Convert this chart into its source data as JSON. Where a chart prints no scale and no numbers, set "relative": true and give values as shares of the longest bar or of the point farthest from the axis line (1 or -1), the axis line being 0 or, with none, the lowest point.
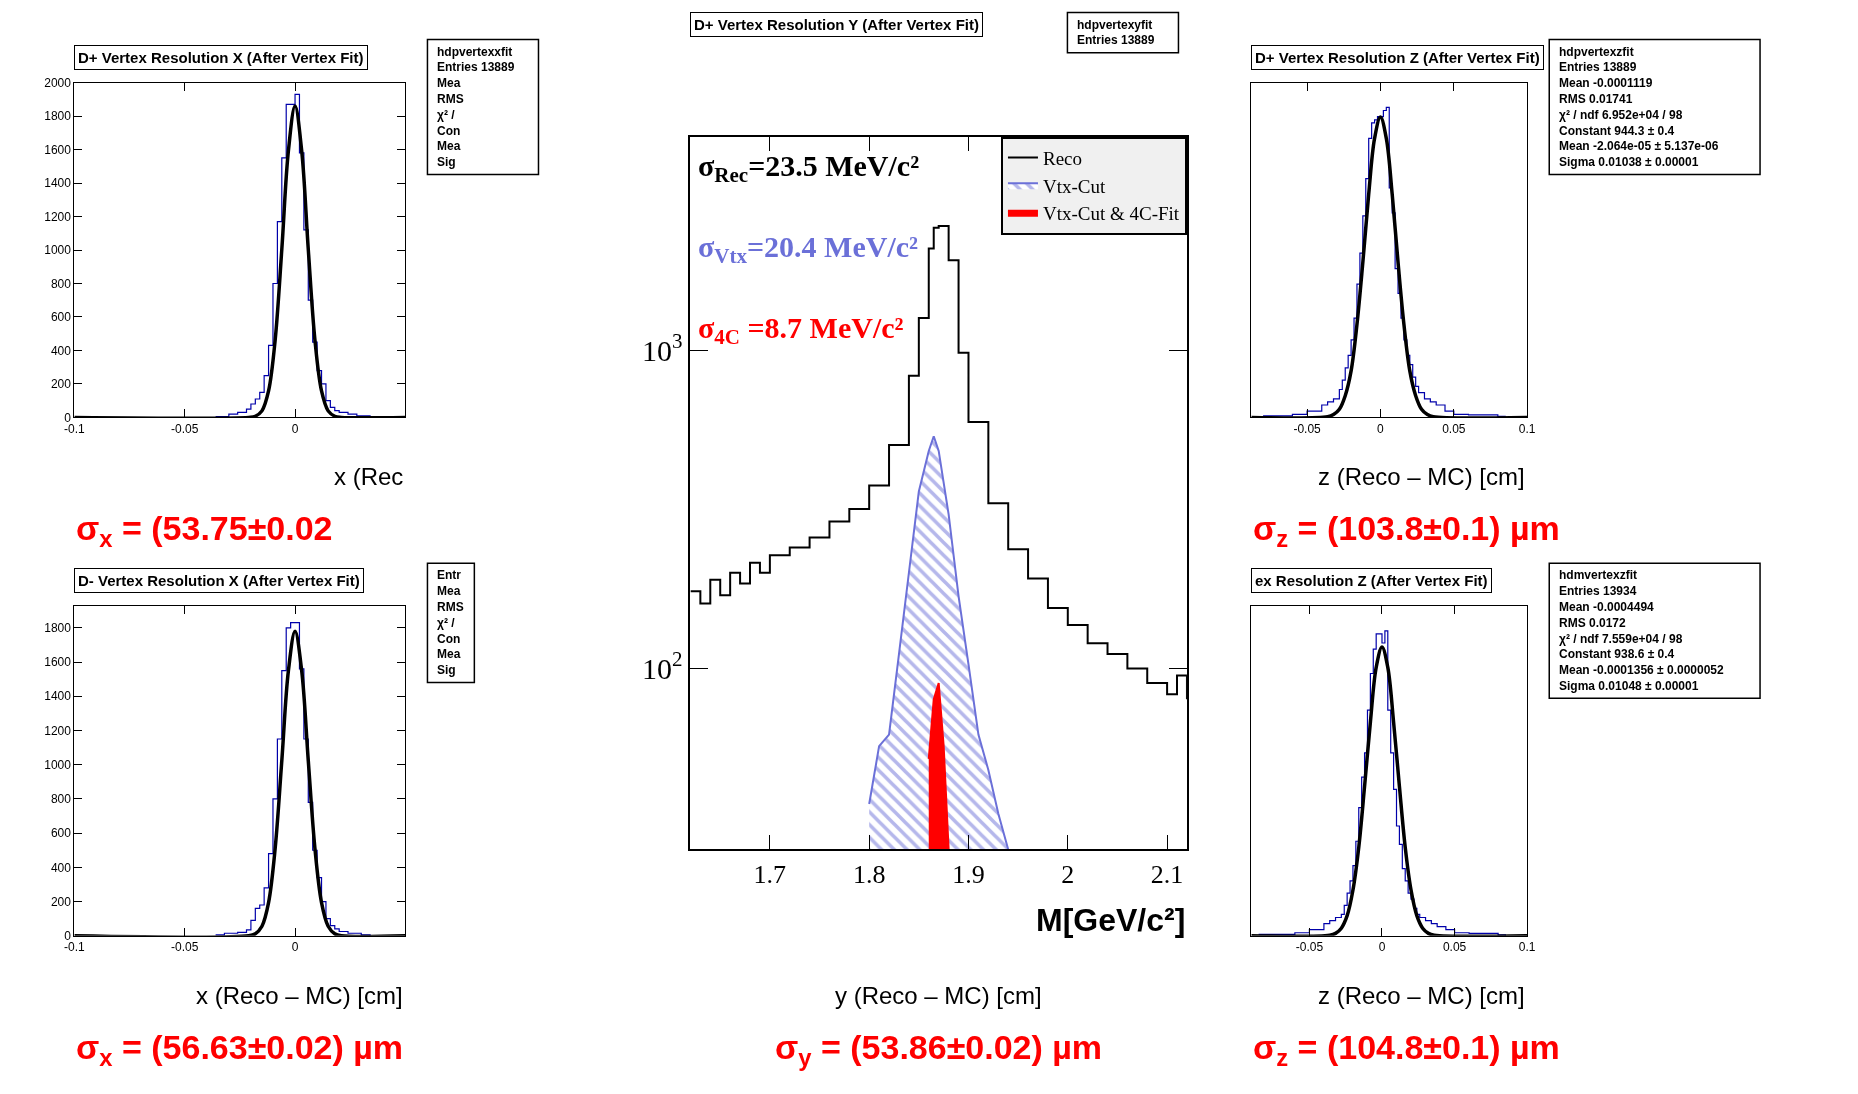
{
  "chart_data": [
    {
      "type": "line",
      "title": "D+ Vertex Resolution X (After Vertex Fit)",
      "xlabel": "x (Rec",
      "subtitle": "σ$_{x}$ = (53.75±0.02",
      "annotations": [
        "hdpvertexxfit",
        "Entries 13889",
        "Mea",
        "RMS",
        "χ² /",
        "Con",
        "Mea",
        "Sig"
      ],
      "xlim": [
        -0.1,
        0.05
      ],
      "xticks": [
        -0.1,
        -0.05,
        0
      ],
      "ylim": [
        0,
        2000
      ],
      "yticks": [
        0,
        200,
        400,
        600,
        800,
        1000,
        1200,
        1400,
        1600,
        1800,
        2000
      ],
      "series": [
        {
          "type": "step",
          "color": "#0000aa",
          "x": [
            -0.036,
            -0.03,
            -0.026,
            -0.022,
            -0.02,
            -0.018,
            -0.016,
            -0.014,
            -0.012,
            -0.01,
            -0.008,
            -0.006,
            -0.004,
            -0.002,
            0,
            0.002,
            0.004,
            0.006,
            0.008,
            0.01,
            0.012,
            0.014,
            0.016,
            0.018,
            0.02,
            0.024,
            0.028,
            0.034
          ],
          "values": [
            5,
            20,
            30,
            50,
            80,
            110,
            150,
            250,
            430,
            800,
            1170,
            1550,
            1870,
            1870,
            1930,
            1580,
            1120,
            700,
            450,
            280,
            200,
            100,
            60,
            40,
            30,
            20,
            10,
            0
          ]
        },
        {
          "type": "line",
          "color": "#000000",
          "x": [
            -0.1,
            -0.021,
            -0.018,
            -0.015,
            -0.012,
            -0.009,
            -0.006,
            -0.003,
            0,
            0.003,
            0.006,
            0.009,
            0.012,
            0.015,
            0.018,
            0.021,
            0.05
          ],
          "values": [
            0,
            0,
            7,
            39,
            158,
            464,
            1003,
            1594,
            1860,
            1594,
            1003,
            464,
            158,
            39,
            7,
            0,
            0
          ]
        }
      ]
    },
    {
      "type": "other",
      "title": "D+ Vertex Resolution Y (After Vertex Fit)",
      "annotations": [
        "hdpvertexyfit",
        "Entries 13889"
      ]
    },
    {
      "type": "line",
      "title": "D+ Vertex Resolution Z (After Vertex Fit)",
      "xlabel": "z (Reco – MC) [cm]",
      "subtitle": "σ$_{z}$ = (103.8±0.1) µm",
      "relative": true,
      "annotations": [
        "hdpvertexzfit",
        "Entries 13889",
        "Mean -0.0001119",
        "RMS 0.01741",
        "χ² / ndf 6.952e+04 / 98",
        "Constant 944.3 ± 0.4",
        "Mean -2.064e-05 ± 5.137e-06",
        "Sigma 0.01038 ± 0.00001"
      ],
      "xlim": [
        -0.088,
        0.1
      ],
      "xticks": [
        -0.05,
        0,
        0.05,
        0.1
      ],
      "series": [
        {
          "type": "step",
          "color": "#0000aa",
          "x": [
            -0.08,
            -0.06,
            -0.05,
            -0.04,
            -0.036,
            -0.032,
            -0.028,
            -0.026,
            -0.024,
            -0.022,
            -0.02,
            -0.018,
            -0.016,
            -0.014,
            -0.012,
            -0.01,
            -0.008,
            -0.006,
            -0.004,
            -0.002,
            0,
            0.002,
            0.004,
            0.006,
            0.008,
            0.01,
            0.012,
            0.014,
            0.016,
            0.018,
            0.02,
            0.022,
            0.024,
            0.026,
            0.03,
            0.034,
            0.038,
            0.044,
            0.05,
            0.06,
            0.08,
            0.085
          ],
          "values": [
            0.005,
            0.01,
            0.02,
            0.04,
            0.05,
            0.06,
            0.09,
            0.12,
            0.16,
            0.2,
            0.25,
            0.32,
            0.43,
            0.53,
            0.65,
            0.77,
            0.9,
            0.95,
            0.96,
            0.97,
            0.97,
            0.99,
            1.0,
            0.74,
            0.66,
            0.48,
            0.4,
            0.32,
            0.25,
            0.2,
            0.17,
            0.13,
            0.1,
            0.08,
            0.06,
            0.05,
            0.04,
            0.02,
            0.01,
            0.008,
            0.003,
            0
          ]
        },
        {
          "type": "line",
          "color": "#000000",
          "x": [
            -0.088,
            -0.036,
            -0.032,
            -0.028,
            -0.024,
            -0.02,
            -0.016,
            -0.012,
            -0.008,
            -0.004,
            0,
            0.004,
            0.008,
            0.012,
            0.016,
            0.02,
            0.024,
            0.028,
            0.032,
            0.036,
            0.1
          ],
          "values": [
            0,
            0.002,
            0.009,
            0.026,
            0.07,
            0.15,
            0.3,
            0.5,
            0.72,
            0.9,
            0.969,
            0.9,
            0.72,
            0.5,
            0.3,
            0.15,
            0.07,
            0.026,
            0.009,
            0.002,
            0
          ]
        }
      ]
    },
    {
      "type": "line",
      "title": "D- Vertex Resolution X (After Vertex Fit)",
      "xlabel": "x (Reco – MC) [cm]",
      "subtitle": "σ$_{x}$ = (56.63±0.02) µm",
      "annotations": [
        "Entr",
        "Mea",
        "RMS",
        "χ² /",
        "Con",
        "Mea",
        "Sig"
      ],
      "xlim": [
        -0.1,
        0.05
      ],
      "xticks": [
        -0.1,
        -0.05,
        0
      ],
      "ylim": [
        0,
        1925
      ],
      "yticks": [
        0,
        200,
        400,
        600,
        800,
        1000,
        1200,
        1400,
        1600,
        1800
      ],
      "series": [
        {
          "type": "step",
          "color": "#0000aa",
          "x": [
            -0.036,
            -0.032,
            -0.026,
            -0.022,
            -0.02,
            -0.018,
            -0.016,
            -0.014,
            -0.012,
            -0.01,
            -0.008,
            -0.006,
            -0.004,
            -0.002,
            0,
            0.002,
            0.004,
            0.006,
            0.008,
            0.01,
            0.012,
            0.014,
            0.016,
            0.018,
            0.02,
            0.024,
            0.03,
            0.034
          ],
          "values": [
            5,
            15,
            20,
            35,
            90,
            160,
            180,
            280,
            480,
            800,
            1150,
            1550,
            1800,
            1830,
            1830,
            1560,
            1150,
            780,
            500,
            340,
            200,
            100,
            60,
            40,
            25,
            15,
            5,
            0
          ]
        },
        {
          "type": "line",
          "color": "#000000",
          "x": [
            -0.1,
            -0.021,
            -0.018,
            -0.015,
            -0.012,
            -0.009,
            -0.006,
            -0.003,
            0,
            0.003,
            0.006,
            0.009,
            0.012,
            0.015,
            0.018,
            0.021,
            0.05
          ],
          "values": [
            0,
            0,
            12,
            56,
            194,
            512,
            1023,
            1550,
            1780,
            1550,
            1023,
            512,
            194,
            56,
            12,
            0,
            0
          ]
        }
      ]
    },
    {
      "type": "line",
      "xlabel": "M[GeV/c²]",
      "log": "y",
      "legend": "top right",
      "annotations": [
        "σ$_{Rec}$=23.5 MeV/c²",
        "σ$_{Vtx}$=20.4 MeV/c²",
        "σ$_{4C}$ =8.7 MeV/c²"
      ],
      "xlim": [
        1.62,
        2.12
      ],
      "xticks": [
        1.7,
        1.8,
        1.9,
        2,
        2.1
      ],
      "ylim": [
        27,
        4700
      ],
      "yticks": [
        {
          "value": 100,
          "label": "10$^{2}$"
        },
        {
          "value": 1000,
          "label": "10$^{3}$"
        }
      ],
      "series": [
        {
          "name": "Reco",
          "type": "step",
          "color": "#000000",
          "x": [
            1.62,
            1.63,
            1.64,
            1.65,
            1.66,
            1.67,
            1.68,
            1.69,
            1.7,
            1.72,
            1.74,
            1.76,
            1.78,
            1.8,
            1.82,
            1.84,
            1.85,
            1.86,
            1.865,
            1.87,
            1.88,
            1.89,
            1.9,
            1.92,
            1.94,
            1.96,
            1.98,
            2.0,
            2.02,
            2.04,
            2.06,
            2.08,
            2.1,
            2.11,
            2.12
          ],
          "values": [
            175,
            160,
            190,
            170,
            200,
            185,
            215,
            200,
            227,
            240,
            258,
            290,
            317,
            376,
            504,
            832,
            1264,
            2090,
            2430,
            2460,
            1920,
            983,
            596,
            331,
            237,
            192,
            155,
            137,
            120,
            111,
            100,
            90,
            83,
            95,
            80
          ]
        },
        {
          "name": "Vtx-Cut",
          "type": "area",
          "color": "#6b70d8",
          "x": [
            1.8,
            1.81,
            1.82,
            1.83,
            1.84,
            1.85,
            1.86,
            1.865,
            1.87,
            1.88,
            1.89,
            1.9,
            1.91,
            1.92,
            1.93,
            1.94
          ],
          "values": [
            37.5,
            57,
            62,
            111,
            200,
            360,
            483,
            537,
            483,
            305,
            169,
            103,
            62,
            48,
            35,
            27
          ]
        },
        {
          "name": "Vtx-Cut & 4C-Fit",
          "type": "area",
          "color": "#ff0000",
          "x": [
            1.86,
            1.865,
            1.87,
            1.875,
            1.88
          ],
          "values": [
            52,
            80,
            90,
            57,
            27
          ]
        }
      ]
    },
    {
      "type": "other",
      "xlabel": "y (Reco – MC) [cm]",
      "subtitle": "σ$_{y}$ = (53.86±0.02) µm"
    },
    {
      "type": "line",
      "title": "ex Resolution Z (After Vertex Fit)",
      "xlabel": "z (Reco – MC) [cm]",
      "subtitle": "σ$_{z}$ = (104.8±0.1) µm",
      "relative": true,
      "annotations": [
        "hdmvertexzfit",
        "Entries 13934",
        "Mean -0.0004494",
        "RMS 0.0172",
        "χ² / ndf 7.559e+04 / 98",
        "Constant 938.6 ± 0.4",
        "Mean -0.0001356 ± 0.0000052",
        "Sigma 0.01048 ± 0.00001"
      ],
      "xlim": [
        -0.09,
        0.1
      ],
      "xticks": [
        -0.05,
        0,
        0.05,
        0.1
      ],
      "series": [
        {
          "type": "step",
          "color": "#0000aa",
          "x": [
            -0.085,
            -0.06,
            -0.05,
            -0.04,
            -0.036,
            -0.032,
            -0.028,
            -0.026,
            -0.024,
            -0.022,
            -0.02,
            -0.018,
            -0.016,
            -0.014,
            -0.012,
            -0.01,
            -0.008,
            -0.006,
            -0.004,
            -0.002,
            0,
            0.002,
            0.004,
            0.006,
            0.008,
            0.01,
            0.012,
            0.014,
            0.016,
            0.018,
            0.02,
            0.022,
            0.024,
            0.026,
            0.03,
            0.034,
            0.038,
            0.044,
            0.05,
            0.06,
            0.08,
            0.085
          ],
          "values": [
            0.005,
            0.01,
            0.02,
            0.04,
            0.05,
            0.06,
            0.07,
            0.1,
            0.14,
            0.18,
            0.23,
            0.31,
            0.42,
            0.52,
            0.6,
            0.74,
            0.86,
            0.94,
            0.99,
            0.99,
            0.96,
            1.0,
            0.74,
            0.6,
            0.48,
            0.36,
            0.3,
            0.22,
            0.18,
            0.14,
            0.12,
            0.09,
            0.07,
            0.06,
            0.05,
            0.04,
            0.03,
            0.02,
            0.01,
            0.008,
            0.003,
            0
          ]
        },
        {
          "type": "line",
          "color": "#000000",
          "x": [
            -0.09,
            -0.036,
            -0.032,
            -0.028,
            -0.024,
            -0.02,
            -0.016,
            -0.012,
            -0.008,
            -0.004,
            0,
            0.004,
            0.008,
            0.012,
            0.016,
            0.02,
            0.024,
            0.028,
            0.032,
            0.036,
            0.1
          ],
          "values": [
            0,
            0.002,
            0.008,
            0.025,
            0.066,
            0.15,
            0.29,
            0.49,
            0.7,
            0.88,
            0.947,
            0.88,
            0.7,
            0.49,
            0.29,
            0.15,
            0.066,
            0.025,
            0.008,
            0.002,
            0
          ]
        }
      ]
    }
  ]
}
